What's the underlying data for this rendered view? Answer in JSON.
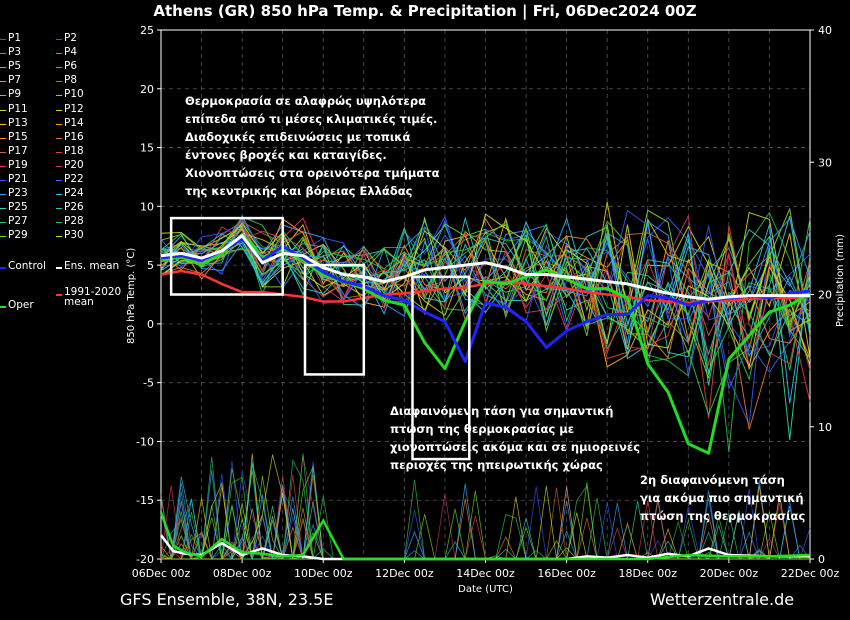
{
  "title": "Athens  (GR)  850 hPa Temp. & Precipitation | Fri, 06Dec2024 00Z",
  "footer": {
    "left": "GFS Ensemble, 38N, 23.5E",
    "right": "Wetterzentrale.de"
  },
  "annotations": {
    "main": [
      "Θερμοκρασία σε αλαφρώς υψηλότερα",
      "επίπεδα από τι μέσες κλιματικές τιμές.",
      "Διαδοχικές επιδεινώσεις με τοπικά",
      "έντονες βροχές και καταιγίδες.",
      "Χιονοπτώσεις στα ορεινότερα τμήματα",
      "της κεντρικής και βόρειας Ελλάδας"
    ],
    "mid": [
      "Διαφαινόμενη τάση για σημαντική",
      "πτώση της θερμοκρασίας με",
      "χιονοπτώσεις ακόμα και σε ημιορεινές",
      "περιοχές της ηπειρωτικής χώρας"
    ],
    "right": [
      "2η διαφαινόμενη τάση",
      "για ακόμα πιο σημαντική",
      "πτώση της θερμοκρασίας"
    ]
  },
  "legend": [
    {
      "label": "P1",
      "color": "#3355ff"
    },
    {
      "label": "P2",
      "color": "#3355ff"
    },
    {
      "label": "P3",
      "color": "#3399ff"
    },
    {
      "label": "P4",
      "color": "#33aaff"
    },
    {
      "label": "P5",
      "color": "#33cccc"
    },
    {
      "label": "P6",
      "color": "#22cc66"
    },
    {
      "label": "P7",
      "color": "#33dd99"
    },
    {
      "label": "P8",
      "color": "#22bb44"
    },
    {
      "label": "P9",
      "color": "#66dd22"
    },
    {
      "label": "P10",
      "color": "#88dd22"
    },
    {
      "label": "P11",
      "color": "#ccdd22"
    },
    {
      "label": "P12",
      "color": "#ddcc22"
    },
    {
      "label": "P13",
      "color": "#ffbb22"
    },
    {
      "label": "P14",
      "color": "#ff9922"
    },
    {
      "label": "P15",
      "color": "#ee8833"
    },
    {
      "label": "P16",
      "color": "#dd7733"
    },
    {
      "label": "P17",
      "color": "#cc6633"
    },
    {
      "label": "P18",
      "color": "#dd4433"
    },
    {
      "label": "P19",
      "color": "#ee3344"
    },
    {
      "label": "P20",
      "color": "#cc3366"
    },
    {
      "label": "P21",
      "color": "#3355ff"
    },
    {
      "label": "P22",
      "color": "#3366ff"
    },
    {
      "label": "P23",
      "color": "#3399ff"
    },
    {
      "label": "P24",
      "color": "#33bbff"
    },
    {
      "label": "P25",
      "color": "#33cccc"
    },
    {
      "label": "P26",
      "color": "#22ccaa"
    },
    {
      "label": "P27",
      "color": "#22cc66"
    },
    {
      "label": "P28",
      "color": "#33cc44"
    },
    {
      "label": "P29",
      "color": "#66dd22"
    },
    {
      "label": "P30",
      "color": "#ccdd22"
    },
    {
      "label": "Control",
      "color": "#2222ff"
    },
    {
      "label": "Ens. mean",
      "color": "#ffffff"
    },
    {
      "label": "Oper",
      "color": "#22dd22"
    },
    {
      "label": "1991-2020 mean",
      "color": "#ff3333"
    }
  ],
  "chart_data": {
    "type": "line",
    "xlabel": "Date (UTC)",
    "ylabel": "850 hPa Temp. (°C)",
    "y2label": "Precipitation (mm)",
    "ylim": [
      -20,
      25
    ],
    "y2lim": [
      0,
      40
    ],
    "yticks": [
      -20,
      -15,
      -10,
      -5,
      0,
      5,
      10,
      15,
      20,
      25
    ],
    "y2ticks": [
      0,
      10,
      20,
      30,
      40
    ],
    "xlim": [
      "06Dec2024 00Z",
      "22Dec2024 00Z"
    ],
    "xticks": [
      "06Dec 00z",
      "08Dec 00z",
      "10Dec 00z",
      "12Dec 00z",
      "14Dec 00z",
      "16Dec 00z",
      "18Dec 00z",
      "20Dec 00z",
      "22Dec 00z"
    ],
    "grid": true,
    "x_days": [
      0,
      0.5,
      1,
      1.5,
      2,
      2.5,
      3,
      3.5,
      4,
      4.5,
      5,
      5.5,
      6,
      6.5,
      7,
      7.5,
      8,
      8.5,
      9,
      9.5,
      10,
      10.5,
      11,
      11.5,
      12,
      12.5,
      13,
      13.5,
      14,
      14.5,
      15,
      15.5,
      16
    ],
    "series": [
      {
        "name": "Ens. mean",
        "color": "#ffffff",
        "width": 3,
        "values": [
          5.8,
          6.0,
          5.6,
          6.2,
          7.5,
          5.2,
          6.0,
          5.8,
          4.8,
          4.2,
          4.0,
          3.6,
          4.0,
          4.6,
          4.8,
          5.0,
          5.2,
          4.8,
          4.2,
          4.2,
          4.0,
          3.8,
          3.6,
          3.4,
          3.0,
          2.6,
          2.3,
          2.1,
          2.3,
          2.4,
          2.4,
          2.4,
          2.4
        ]
      },
      {
        "name": "Control",
        "color": "#2222ff",
        "width": 3,
        "values": [
          5.6,
          5.8,
          5.4,
          6.2,
          7.2,
          5.4,
          6.6,
          5.6,
          4.4,
          3.6,
          3.2,
          2.4,
          2.0,
          1.0,
          0.2,
          -3.2,
          1.8,
          1.4,
          0.2,
          -2.0,
          -0.6,
          0.2,
          0.8,
          0.8,
          2.4,
          2.2,
          1.6,
          2.0,
          2.2,
          2.4,
          2.2,
          2.6,
          2.8
        ]
      },
      {
        "name": "Oper",
        "color": "#22dd22",
        "width": 3,
        "values": [
          5.4,
          5.7,
          5.0,
          6.0,
          7.6,
          5.6,
          6.4,
          5.4,
          4.2,
          3.6,
          3.0,
          2.0,
          1.6,
          -1.6,
          -3.8,
          0.2,
          3.6,
          3.4,
          4.0,
          4.6,
          3.8,
          3.0,
          3.0,
          2.2,
          -3.4,
          -5.8,
          -10.2,
          -11.0,
          -3.0,
          -1.0,
          1.0,
          1.6,
          2.6
        ]
      },
      {
        "name": "1991-2020 mean",
        "color": "#ff3333",
        "width": 2.5,
        "values": [
          4.2,
          4.5,
          4.2,
          3.4,
          2.7,
          2.7,
          2.5,
          2.3,
          1.9,
          1.9,
          2.2,
          2.5,
          2.6,
          2.8,
          3.0,
          3.1,
          3.4,
          3.6,
          3.4,
          3.2,
          3.0,
          2.7,
          2.5,
          2.3,
          2.0,
          1.9,
          1.8,
          1.9,
          2.0,
          2.1,
          2.2,
          2.2,
          2.3
        ]
      }
    ],
    "precip_series": [
      {
        "name": "Ens. mean",
        "color": "#ffffff",
        "x": [
          0,
          0.3,
          0.6,
          1,
          1.5,
          2,
          2.5,
          3,
          3.5,
          4,
          4.5,
          5,
          5.5,
          6,
          6.5,
          7,
          7.5,
          8,
          8.5,
          9,
          9.5,
          10,
          10.5,
          11,
          11.5,
          12,
          12.5,
          13,
          13.5,
          14,
          15,
          16
        ],
        "values": [
          1.8,
          0.6,
          0.4,
          0.3,
          1.2,
          0.3,
          0.8,
          0.3,
          0.2,
          0,
          0,
          0,
          0,
          0,
          0,
          0,
          0,
          0,
          0,
          0,
          0,
          0,
          0.2,
          0.1,
          0.3,
          0.1,
          0.4,
          0.2,
          0.8,
          0.3,
          0.2,
          0.2
        ]
      },
      {
        "name": "Oper",
        "color": "#22dd22",
        "x": [
          0,
          0.3,
          0.6,
          1,
          1.5,
          2,
          2.5,
          3,
          3.5,
          4,
          4.5,
          5,
          5.5,
          6,
          7,
          8,
          9,
          10,
          11,
          12,
          13,
          14,
          15,
          16
        ],
        "values": [
          3.5,
          1.0,
          0.5,
          0.2,
          1.5,
          0.5,
          0.4,
          0.2,
          0.3,
          2.9,
          0,
          0,
          0,
          0,
          0,
          0,
          0,
          0,
          0,
          0,
          0.3,
          0.2,
          0.2,
          0.3
        ]
      }
    ]
  }
}
